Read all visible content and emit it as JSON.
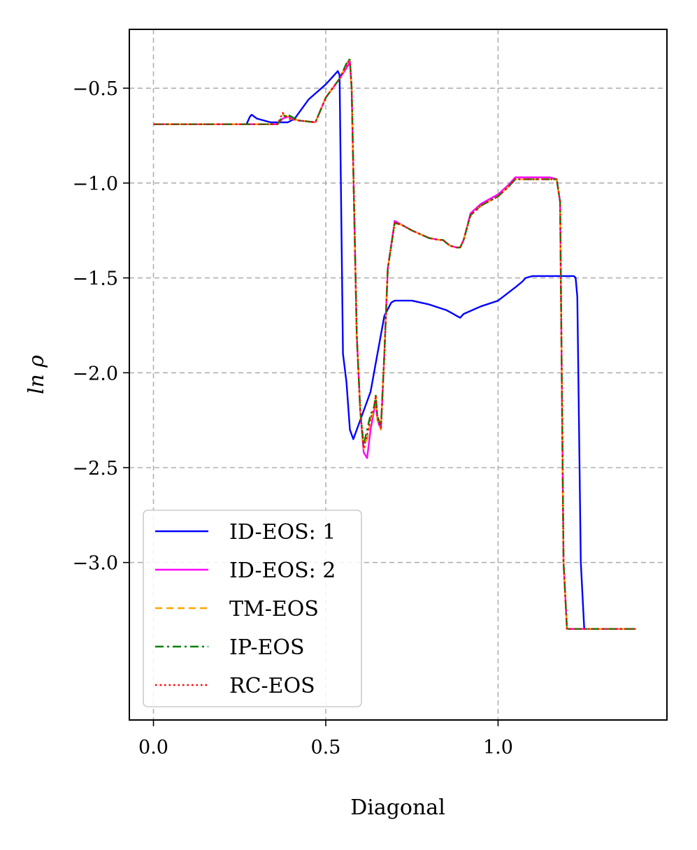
{
  "chart_data": {
    "type": "line",
    "title": "",
    "xlabel": "Diagonal",
    "ylabel": "ln ρ",
    "xlim": [
      -0.07,
      1.49
    ],
    "ylim": [
      -3.83,
      -0.19
    ],
    "xticks": [
      0.0,
      0.5,
      1.0
    ],
    "xtick_labels": [
      "0.0",
      "0.5",
      "1.0"
    ],
    "yticks": [
      -0.5,
      -1.0,
      -1.5,
      -2.0,
      -2.5,
      -3.0
    ],
    "ytick_labels": [
      "−0.5",
      "−1.0",
      "−1.5",
      "−2.0",
      "−2.5",
      "−3.0"
    ],
    "grid": true,
    "legend_position": "lower-left",
    "series": [
      {
        "name": "ID-EOS: 1",
        "color": "#0000ff",
        "style": "solid",
        "x": [
          0.0,
          0.27,
          0.28,
          0.285,
          0.3,
          0.34,
          0.39,
          0.41,
          0.45,
          0.5,
          0.52,
          0.535,
          0.54,
          0.55,
          0.56,
          0.57,
          0.58,
          0.6,
          0.61,
          0.63,
          0.65,
          0.67,
          0.69,
          0.7,
          0.75,
          0.8,
          0.85,
          0.87,
          0.88,
          0.89,
          0.9,
          0.95,
          1.0,
          1.05,
          1.07,
          1.08,
          1.1,
          1.15,
          1.2,
          1.22,
          1.225,
          1.23,
          1.24,
          1.25,
          1.3,
          1.4
        ],
        "y": [
          -0.69,
          -0.69,
          -0.65,
          -0.64,
          -0.66,
          -0.68,
          -0.68,
          -0.66,
          -0.56,
          -0.48,
          -0.44,
          -0.41,
          -0.43,
          -1.9,
          -2.05,
          -2.3,
          -2.35,
          -2.25,
          -2.2,
          -2.1,
          -1.9,
          -1.7,
          -1.63,
          -1.62,
          -1.62,
          -1.64,
          -1.67,
          -1.69,
          -1.7,
          -1.71,
          -1.69,
          -1.65,
          -1.62,
          -1.55,
          -1.52,
          -1.5,
          -1.49,
          -1.49,
          -1.49,
          -1.49,
          -1.5,
          -1.6,
          -3.0,
          -3.35,
          -3.35,
          -3.35
        ]
      },
      {
        "name": "ID-EOS: 2",
        "color": "#ff00ff",
        "style": "solid",
        "x": [
          0.0,
          0.36,
          0.375,
          0.39,
          0.42,
          0.47,
          0.5,
          0.54,
          0.565,
          0.57,
          0.575,
          0.59,
          0.6,
          0.61,
          0.62,
          0.63,
          0.64,
          0.645,
          0.65,
          0.66,
          0.67,
          0.68,
          0.7,
          0.72,
          0.75,
          0.8,
          0.83,
          0.84,
          0.86,
          0.88,
          0.89,
          0.9,
          0.92,
          0.95,
          1.0,
          1.03,
          1.05,
          1.1,
          1.15,
          1.17,
          1.18,
          1.19,
          1.2,
          1.3,
          1.4
        ],
        "y": [
          -0.69,
          -0.69,
          -0.66,
          -0.65,
          -0.67,
          -0.68,
          -0.55,
          -0.45,
          -0.38,
          -0.36,
          -0.5,
          -1.8,
          -2.2,
          -2.42,
          -2.45,
          -2.3,
          -2.2,
          -2.15,
          -2.25,
          -2.3,
          -1.9,
          -1.45,
          -1.2,
          -1.22,
          -1.25,
          -1.29,
          -1.3,
          -1.3,
          -1.33,
          -1.34,
          -1.34,
          -1.3,
          -1.16,
          -1.11,
          -1.06,
          -1.01,
          -0.97,
          -0.97,
          -0.97,
          -0.98,
          -1.1,
          -3.0,
          -3.35,
          -3.35,
          -3.35
        ]
      },
      {
        "name": "TM-EOS",
        "color": "#ffa500",
        "style": "dashed",
        "x": [
          0.0,
          0.36,
          0.375,
          0.39,
          0.42,
          0.47,
          0.5,
          0.54,
          0.565,
          0.57,
          0.575,
          0.59,
          0.6,
          0.61,
          0.62,
          0.63,
          0.64,
          0.645,
          0.65,
          0.66,
          0.67,
          0.68,
          0.7,
          0.72,
          0.75,
          0.8,
          0.83,
          0.84,
          0.86,
          0.88,
          0.89,
          0.9,
          0.92,
          0.95,
          1.0,
          1.03,
          1.05,
          1.1,
          1.15,
          1.17,
          1.18,
          1.19,
          1.2,
          1.3,
          1.4
        ],
        "y": [
          -0.69,
          -0.69,
          -0.64,
          -0.65,
          -0.67,
          -0.68,
          -0.55,
          -0.45,
          -0.36,
          -0.35,
          -0.5,
          -1.8,
          -2.2,
          -2.4,
          -2.35,
          -2.25,
          -2.2,
          -2.12,
          -2.25,
          -2.3,
          -1.9,
          -1.45,
          -1.21,
          -1.22,
          -1.25,
          -1.29,
          -1.3,
          -1.3,
          -1.33,
          -1.34,
          -1.34,
          -1.3,
          -1.17,
          -1.12,
          -1.07,
          -1.02,
          -0.98,
          -0.98,
          -0.98,
          -0.98,
          -1.1,
          -3.0,
          -3.35,
          -3.35,
          -3.35
        ]
      },
      {
        "name": "IP-EOS",
        "color": "#008000",
        "style": "dashdot",
        "x": [
          0.0,
          0.36,
          0.375,
          0.39,
          0.42,
          0.47,
          0.5,
          0.54,
          0.565,
          0.57,
          0.575,
          0.59,
          0.6,
          0.61,
          0.62,
          0.63,
          0.64,
          0.645,
          0.65,
          0.66,
          0.67,
          0.68,
          0.7,
          0.72,
          0.75,
          0.8,
          0.83,
          0.84,
          0.86,
          0.88,
          0.89,
          0.9,
          0.92,
          0.95,
          1.0,
          1.03,
          1.05,
          1.1,
          1.15,
          1.17,
          1.18,
          1.19,
          1.2,
          1.3,
          1.4
        ],
        "y": [
          -0.69,
          -0.69,
          -0.65,
          -0.64,
          -0.67,
          -0.68,
          -0.55,
          -0.45,
          -0.35,
          -0.35,
          -0.5,
          -1.8,
          -2.2,
          -2.38,
          -2.3,
          -2.22,
          -2.18,
          -2.12,
          -2.23,
          -2.28,
          -1.9,
          -1.45,
          -1.21,
          -1.22,
          -1.25,
          -1.29,
          -1.3,
          -1.3,
          -1.33,
          -1.34,
          -1.34,
          -1.3,
          -1.17,
          -1.12,
          -1.07,
          -1.02,
          -0.98,
          -0.98,
          -0.98,
          -0.98,
          -1.1,
          -3.0,
          -3.35,
          -3.35,
          -3.35
        ]
      },
      {
        "name": "RC-EOS",
        "color": "#ff0000",
        "style": "dotted",
        "x": [
          0.0,
          0.36,
          0.375,
          0.39,
          0.42,
          0.47,
          0.5,
          0.54,
          0.565,
          0.57,
          0.575,
          0.59,
          0.6,
          0.61,
          0.62,
          0.63,
          0.64,
          0.645,
          0.65,
          0.66,
          0.67,
          0.68,
          0.7,
          0.72,
          0.75,
          0.8,
          0.83,
          0.84,
          0.86,
          0.88,
          0.89,
          0.9,
          0.92,
          0.95,
          1.0,
          1.03,
          1.05,
          1.1,
          1.15,
          1.17,
          1.18,
          1.19,
          1.2,
          1.3,
          1.4
        ],
        "y": [
          -0.69,
          -0.69,
          -0.63,
          -0.66,
          -0.67,
          -0.68,
          -0.55,
          -0.45,
          -0.36,
          -0.36,
          -0.5,
          -1.8,
          -2.2,
          -2.4,
          -2.33,
          -2.24,
          -2.19,
          -2.12,
          -2.24,
          -2.29,
          -1.9,
          -1.45,
          -1.21,
          -1.22,
          -1.25,
          -1.29,
          -1.3,
          -1.3,
          -1.33,
          -1.34,
          -1.34,
          -1.3,
          -1.17,
          -1.12,
          -1.07,
          -1.02,
          -0.98,
          -0.98,
          -0.98,
          -0.98,
          -1.1,
          -3.0,
          -3.35,
          -3.35,
          -3.35
        ]
      }
    ]
  }
}
